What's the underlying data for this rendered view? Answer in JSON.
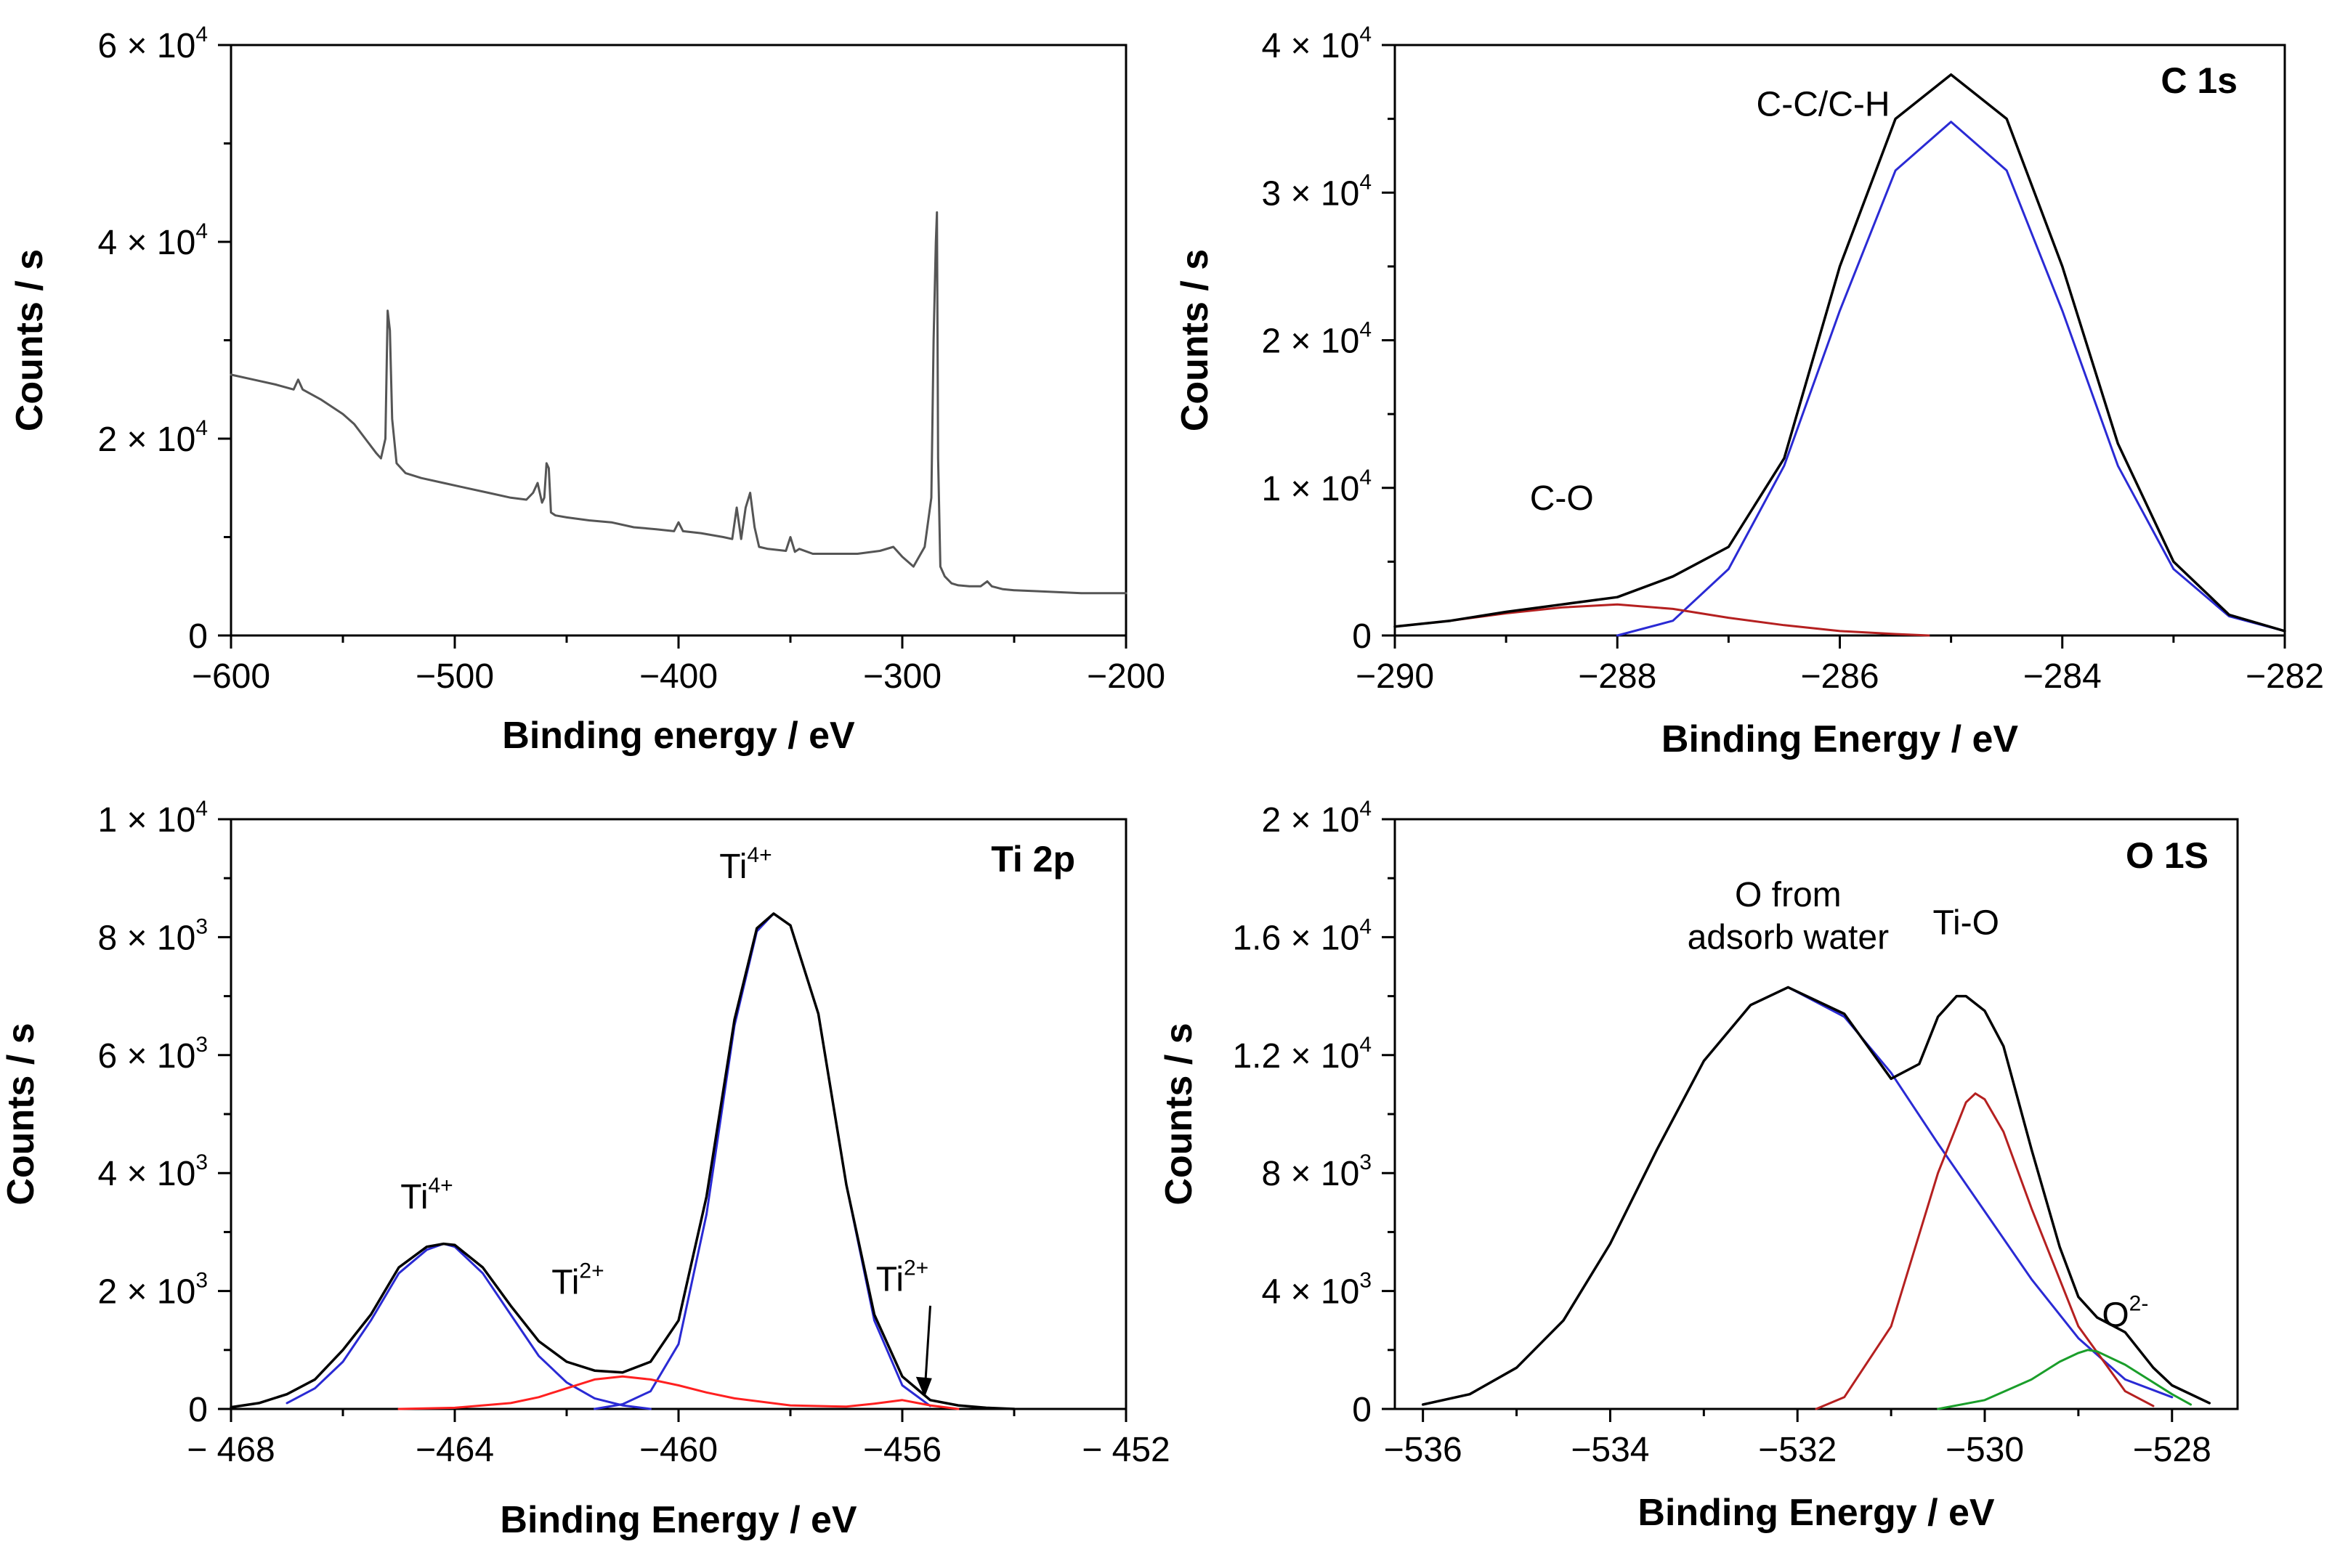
{
  "figure": {
    "panels": [
      {
        "id": "survey",
        "title": "",
        "xlabel": "Binding energy / eV",
        "ylabel": "Counts / s",
        "xlim": [
          -600,
          -200
        ],
        "ylim": [
          0,
          60000
        ],
        "xticks": [
          {
            "v": -600,
            "t": "−600"
          },
          {
            "v": -500,
            "t": "−500"
          },
          {
            "v": -400,
            "t": "−400"
          },
          {
            "v": -300,
            "t": "−300"
          },
          {
            "v": -200,
            "t": "−200"
          }
        ],
        "yticks": [
          {
            "v": 0,
            "m": "0",
            "e": ""
          },
          {
            "v": 20000,
            "m": "2 × 10",
            "e": "4"
          },
          {
            "v": 40000,
            "m": "4 × 10",
            "e": "4"
          },
          {
            "v": 60000,
            "m": "6 × 10",
            "e": "4"
          }
        ],
        "series": [
          {
            "name": "survey spectrum",
            "color": "#555555",
            "width": 3,
            "x": [
              -600,
              -590,
              -580,
              -572,
              -570,
              -568,
              -560,
              -550,
              -545,
              -540,
              -535,
              -533,
              -531,
              -530,
              -529,
              -528,
              -526,
              -522,
              -515,
              -505,
              -495,
              -485,
              -475,
              -468,
              -465,
              -463,
              -461,
              -460,
              -459,
              -458,
              -457,
              -455,
              -450,
              -440,
              -430,
              -420,
              -410,
              -402,
              -400,
              -398,
              -390,
              -380,
              -376,
              -374,
              -372,
              -370,
              -368,
              -366,
              -364,
              -360,
              -352,
              -350,
              -348,
              -346,
              -340,
              -330,
              -320,
              -310,
              -304,
              -300,
              -295,
              -290,
              -287,
              -286,
              -285,
              -284.5,
              -284,
              -283,
              -281,
              -278,
              -275,
              -270,
              -265,
              -262,
              -260,
              -255,
              -250,
              -240,
              -230,
              -220,
              -210,
              -200
            ],
            "y": [
              26500,
              26000,
              25500,
              25000,
              26000,
              25000,
              24000,
              22500,
              21500,
              20000,
              18500,
              18000,
              20000,
              33000,
              31000,
              22000,
              17500,
              16500,
              16000,
              15500,
              15000,
              14500,
              14000,
              13800,
              14500,
              15500,
              13500,
              14000,
              17500,
              17000,
              12500,
              12200,
              12000,
              11700,
              11500,
              11000,
              10800,
              10600,
              11500,
              10600,
              10400,
              10000,
              9800,
              13000,
              9800,
              13000,
              14500,
              11000,
              9000,
              8800,
              8600,
              10000,
              8500,
              8800,
              8300,
              8300,
              8300,
              8600,
              9000,
              8000,
              7000,
              9000,
              14000,
              30000,
              40000,
              43000,
              18000,
              7000,
              6000,
              5300,
              5100,
              5000,
              5000,
              5500,
              5000,
              4700,
              4600,
              4500,
              4400,
              4300,
              4300,
              4300
            ]
          }
        ],
        "annotations": []
      },
      {
        "id": "c1s",
        "title": "C 1s",
        "xlabel": "Binding Energy / eV",
        "ylabel": "Counts / s",
        "xlim": [
          -290,
          -282
        ],
        "ylim": [
          0,
          40000
        ],
        "xticks": [
          {
            "v": -290,
            "t": "−290"
          },
          {
            "v": -288,
            "t": "−288"
          },
          {
            "v": -286,
            "t": "−286"
          },
          {
            "v": -284,
            "t": "−284"
          },
          {
            "v": -282,
            "t": "−282"
          }
        ],
        "yticks": [
          {
            "v": 0,
            "m": "0",
            "e": ""
          },
          {
            "v": 10000,
            "m": "1 × 10",
            "e": "4"
          },
          {
            "v": 20000,
            "m": "2 × 10",
            "e": "4"
          },
          {
            "v": 30000,
            "m": "3 × 10",
            "e": "4"
          },
          {
            "v": 40000,
            "m": "4 × 10",
            "e": "4"
          }
        ],
        "series": [
          {
            "name": "C-C/C-H component",
            "color": "#2a2ad4",
            "width": 3,
            "x": [
              -288,
              -287.5,
              -287,
              -286.5,
              -286,
              -285.5,
              -285,
              -284.5,
              -284,
              -283.5,
              -283,
              -282.5,
              -282
            ],
            "y": [
              0,
              1000,
              4500,
              11500,
              22000,
              31500,
              34800,
              31500,
              22000,
              11500,
              4500,
              1300,
              300
            ]
          },
          {
            "name": "C-O component",
            "color": "#b52020",
            "width": 3,
            "x": [
              -290,
              -289.5,
              -289,
              -288.5,
              -288,
              -287.5,
              -287,
              -286.5,
              -286,
              -285.5,
              -285.2
            ],
            "y": [
              600,
              1000,
              1500,
              1900,
              2100,
              1800,
              1200,
              700,
              300,
              100,
              0
            ]
          },
          {
            "name": "envelope",
            "color": "#000000",
            "width": 3.5,
            "x": [
              -290,
              -289.5,
              -289,
              -288.5,
              -288,
              -287.5,
              -287,
              -286.5,
              -286,
              -285.5,
              -285,
              -284.5,
              -284,
              -283.5,
              -283,
              -282.5,
              -282
            ],
            "y": [
              600,
              1000,
              1600,
              2100,
              2600,
              4000,
              6000,
              12000,
              25000,
              35000,
              38000,
              35000,
              25000,
              13000,
              5000,
              1400,
              300
            ]
          }
        ],
        "annotations": [
          {
            "text": "C-C/C-H",
            "sup": "",
            "x": -286.15,
            "y": 35200
          },
          {
            "text": "C-O",
            "sup": "",
            "x": -288.5,
            "y": 8500
          }
        ]
      },
      {
        "id": "ti2p",
        "title": "Ti 2p",
        "xlabel": "Binding Energy / eV",
        "ylabel": "Counts / s",
        "xlim": [
          -468,
          -452
        ],
        "ylim": [
          0,
          10000
        ],
        "xticks": [
          {
            "v": -468,
            "t": "− 468"
          },
          {
            "v": -464,
            "t": "−464"
          },
          {
            "v": -460,
            "t": "−460"
          },
          {
            "v": -456,
            "t": "−456"
          },
          {
            "v": -452,
            "t": "− 452"
          }
        ],
        "yticks": [
          {
            "v": 0,
            "m": "0",
            "e": ""
          },
          {
            "v": 2000,
            "m": "2 × 10",
            "e": "3"
          },
          {
            "v": 4000,
            "m": "4 × 10",
            "e": "3"
          },
          {
            "v": 6000,
            "m": "6 × 10",
            "e": "3"
          },
          {
            "v": 8000,
            "m": "8 × 10",
            "e": "3"
          },
          {
            "v": 10000,
            "m": "1 × 10",
            "e": "4"
          }
        ],
        "series": [
          {
            "name": "Ti4+ 2p1/2 component",
            "color": "#2a2ad4",
            "width": 3,
            "x": [
              -467,
              -466.5,
              -466,
              -465.5,
              -465,
              -464.5,
              -464.2,
              -464,
              -463.5,
              -463,
              -462.5,
              -462,
              -461.5,
              -461,
              -460.5
            ],
            "y": [
              100,
              350,
              800,
              1500,
              2300,
              2700,
              2800,
              2750,
              2300,
              1600,
              900,
              450,
              180,
              60,
              0
            ]
          },
          {
            "name": "Ti4+ 2p3/2 component",
            "color": "#2a2ad4",
            "width": 3,
            "x": [
              -461.5,
              -461,
              -460.5,
              -460,
              -459.5,
              -459,
              -458.6,
              -458.3,
              -458,
              -457.5,
              -457,
              -456.5,
              -456,
              -455.5
            ],
            "y": [
              0,
              80,
              300,
              1100,
              3300,
              6500,
              8100,
              8400,
              8200,
              6700,
              3800,
              1500,
              400,
              50
            ]
          },
          {
            "name": "Ti2+ component",
            "color": "#ff2020",
            "width": 3,
            "x": [
              -465,
              -464,
              -463,
              -462.5,
              -462,
              -461.5,
              -461,
              -460.5,
              -460,
              -459.5,
              -459,
              -458,
              -457,
              -456.5,
              -456,
              -455.5,
              -455
            ],
            "y": [
              0,
              20,
              100,
              200,
              350,
              500,
              550,
              500,
              400,
              280,
              180,
              60,
              40,
              90,
              150,
              60,
              0
            ]
          },
          {
            "name": "envelope",
            "color": "#000000",
            "width": 3.5,
            "x": [
              -468,
              -467.5,
              -467,
              -466.5,
              -466,
              -465.5,
              -465,
              -464.5,
              -464.2,
              -464,
              -463.5,
              -463,
              -462.5,
              -462,
              -461.5,
              -461,
              -460.5,
              -460,
              -459.5,
              -459,
              -458.6,
              -458.3,
              -458,
              -457.5,
              -457,
              -456.5,
              -456,
              -455.5,
              -455,
              -454.5,
              -454
            ],
            "y": [
              30,
              100,
              250,
              500,
              1000,
              1600,
              2400,
              2750,
              2800,
              2780,
              2400,
              1750,
              1150,
              800,
              650,
              620,
              800,
              1500,
              3600,
              6600,
              8150,
              8400,
              8200,
              6700,
              3800,
              1600,
              550,
              150,
              60,
              20,
              0
            ]
          }
        ],
        "annotations": [
          {
            "text": "Ti",
            "sup": "4+",
            "x": -464.5,
            "y": 3400
          },
          {
            "text": "Ti",
            "sup": "2+",
            "x": -461.8,
            "y": 1950
          },
          {
            "text": "Ti",
            "sup": "4+",
            "x": -458.8,
            "y": 9000
          },
          {
            "text": "Ti",
            "sup": "2+",
            "x": -456,
            "y": 2000
          }
        ],
        "arrow": {
          "from": [
            -455.5,
            1750
          ],
          "to": [
            -455.6,
            250
          ]
        }
      },
      {
        "id": "o1s",
        "title": "O 1S",
        "xlabel": "Binding Energy / eV",
        "ylabel": "Counts / s",
        "xlim": [
          -536.3,
          -527.3
        ],
        "ylim": [
          0,
          20000
        ],
        "xticks": [
          {
            "v": -536,
            "t": "−536"
          },
          {
            "v": -534,
            "t": "−534"
          },
          {
            "v": -532,
            "t": "−532"
          },
          {
            "v": -530,
            "t": "−530"
          },
          {
            "v": -528,
            "t": "−528"
          }
        ],
        "yticks": [
          {
            "v": 0,
            "m": "0",
            "e": ""
          },
          {
            "v": 4000,
            "m": "4 × 10",
            "e": "3"
          },
          {
            "v": 8000,
            "m": "8 × 10",
            "e": "3"
          },
          {
            "v": 12000,
            "m": "1.2 × 10",
            "e": "4"
          },
          {
            "v": 16000,
            "m": "1.6 × 10",
            "e": "4"
          },
          {
            "v": 20000,
            "m": "2 × 10",
            "e": "4"
          }
        ],
        "series": [
          {
            "name": "adsorbed water component",
            "color": "#2a2ad4",
            "width": 3,
            "x": [
              -536,
              -535.5,
              -535,
              -534.5,
              -534,
              -533.5,
              -533,
              -532.5,
              -532.1,
              -531.5,
              -531,
              -530.5,
              -530,
              -529.5,
              -529,
              -528.5,
              -528
            ],
            "y": [
              150,
              500,
              1400,
              3000,
              5600,
              8800,
              11800,
              13700,
              14300,
              13300,
              11400,
              9000,
              6700,
              4400,
              2400,
              1000,
              400
            ]
          },
          {
            "name": "Ti-O component",
            "color": "#b52020",
            "width": 3,
            "x": [
              -531.8,
              -531.5,
              -531,
              -530.5,
              -530.2,
              -530.1,
              -530,
              -529.8,
              -529.5,
              -529,
              -528.5,
              -528.2
            ],
            "y": [
              0,
              400,
              2800,
              8000,
              10400,
              10700,
              10500,
              9400,
              6800,
              2800,
              600,
              100
            ]
          },
          {
            "name": "O2- component",
            "color": "#1a9e2a",
            "width": 3,
            "x": [
              -530.5,
              -530,
              -529.5,
              -529.2,
              -529,
              -528.9,
              -528.8,
              -528.5,
              -528,
              -527.8
            ],
            "y": [
              0,
              300,
              1000,
              1600,
              1900,
              2000,
              1950,
              1500,
              500,
              150
            ]
          },
          {
            "name": "envelope",
            "color": "#000000",
            "width": 3.5,
            "x": [
              -536,
              -535.5,
              -535,
              -534.5,
              -534,
              -533.5,
              -533,
              -532.5,
              -532.1,
              -531.5,
              -531,
              -530.7,
              -530.5,
              -530.3,
              -530.2,
              -530,
              -529.8,
              -529.5,
              -529.2,
              -529,
              -528.8,
              -528.5,
              -528.2,
              -528,
              -527.6
            ],
            "y": [
              150,
              500,
              1400,
              3000,
              5600,
              8800,
              11800,
              13700,
              14300,
              13400,
              11200,
              11700,
              13300,
              14000,
              14000,
              13500,
              12300,
              8800,
              5500,
              3800,
              3100,
              2600,
              1400,
              800,
              200
            ]
          }
        ],
        "annotations": [
          {
            "text": "O from",
            "sup": "",
            "x": -532.1,
            "y": 17050
          },
          {
            "text": "adsorb water",
            "sup": "",
            "x": -532.1,
            "y": 15600
          },
          {
            "text": "Ti-O",
            "sup": "",
            "x": -530.2,
            "y": 16100
          },
          {
            "text": "O",
            "sup": "2-",
            "x": -528.5,
            "y": 2800
          }
        ]
      }
    ]
  }
}
